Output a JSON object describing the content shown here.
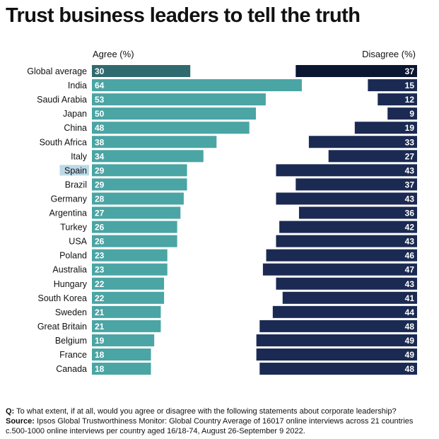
{
  "title": "Trust business leaders to tell the truth",
  "chart_data": {
    "type": "bar",
    "title": "Trust business leaders to tell the truth",
    "agree_label": "Agree (%)",
    "disagree_label": "Disagree (%)",
    "highlight": "Spain",
    "categories": [
      "Global average",
      "India",
      "Saudi Arabia",
      "Japan",
      "China",
      "South Africa",
      "Italy",
      "Spain",
      "Brazil",
      "Germany",
      "Argentina",
      "Turkey",
      "USA",
      "Poland",
      "Australia",
      "Hungary",
      "South Korea",
      "Sweden",
      "Great Britain",
      "Belgium",
      "France",
      "Canada"
    ],
    "series": [
      {
        "name": "Agree (%)",
        "values": [
          30,
          64,
          53,
          50,
          48,
          38,
          34,
          29,
          29,
          28,
          27,
          26,
          26,
          23,
          23,
          22,
          22,
          21,
          21,
          19,
          18,
          18
        ]
      },
      {
        "name": "Disagree (%)",
        "values": [
          37,
          15,
          12,
          9,
          19,
          33,
          27,
          43,
          37,
          43,
          36,
          42,
          43,
          46,
          47,
          43,
          41,
          44,
          48,
          49,
          49,
          48
        ]
      }
    ],
    "colors": {
      "agree": "#4aa5a4",
      "agree_global": "#2f6b6e",
      "disagree": "#1b2a52",
      "disagree_global": "#0b1633",
      "highlight_bg": "#bcd9e6"
    }
  },
  "footer": {
    "q_label": "Q:",
    "question": "To what extent, if at all, would you agree or disagree with the following statements about corporate leadership?",
    "source_label": "Source:",
    "source": "Ipsos Global Trustworthiness Monitor: Global Country Average of 16017 online interviews across 21 countries c.500-1000 online interviews per country aged 16/18-74, August 26-September 9 2022."
  }
}
